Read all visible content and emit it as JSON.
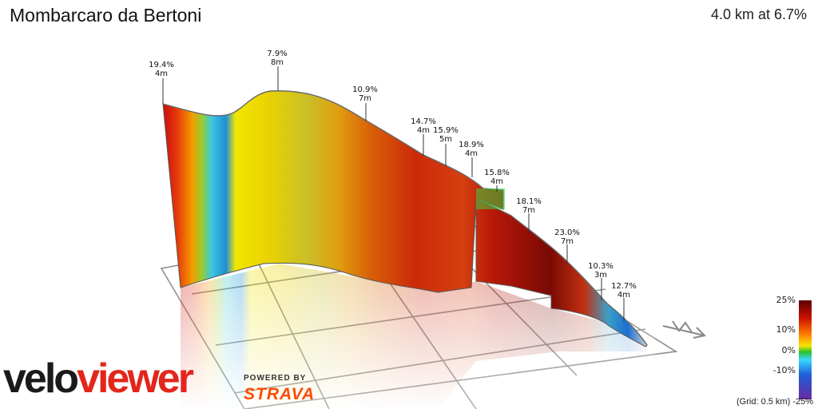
{
  "header": {
    "title": "Mombarcaro da Bertoni",
    "summary": "4.0 km at 6.7%"
  },
  "chart_data": {
    "type": "area",
    "title": "Mombarcaro da Bertoni",
    "subtitle": "4.0 km at 6.7%",
    "grid_spacing_km": 0.5,
    "distance_km": 4.0,
    "average_gradient_pct": 6.7,
    "annotations": [
      {
        "gradient": "19.4%",
        "length": "4m"
      },
      {
        "gradient": "7.9%",
        "length": "8m"
      },
      {
        "gradient": "10.9%",
        "length": "7m"
      },
      {
        "gradient": "14.7%",
        "length": "4m"
      },
      {
        "gradient": "15.9%",
        "length": "5m"
      },
      {
        "gradient": "18.9%",
        "length": "4m"
      },
      {
        "gradient": "15.8%",
        "length": "4m"
      },
      {
        "gradient": "18.1%",
        "length": "7m"
      },
      {
        "gradient": "23.0%",
        "length": "7m"
      },
      {
        "gradient": "10.3%",
        "length": "3m"
      },
      {
        "gradient": "12.7%",
        "length": "4m"
      }
    ],
    "gradient_scale": {
      "ticks": [
        "25%",
        "10%",
        "0%",
        "-10%",
        "-25%"
      ],
      "colors": [
        "#5a0000",
        "#cc1100",
        "#ff7a00",
        "#f5e600",
        "#2bbf2b",
        "#39d8ff",
        "#1f5fd8",
        "#6a2aa0"
      ]
    },
    "grid_note": "(Grid: 0.5 km)"
  },
  "branding": {
    "logo_part1": "velo",
    "logo_part2": "viewer",
    "powered_by": "POWERED BY",
    "strava": "STRAVA"
  }
}
